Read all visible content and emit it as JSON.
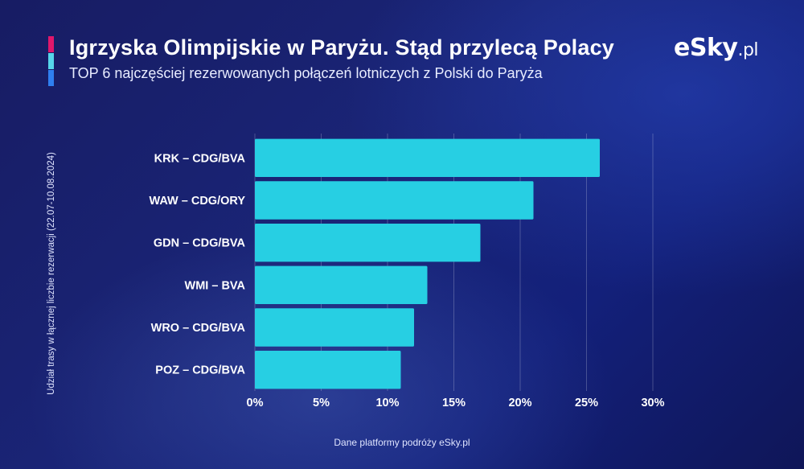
{
  "header": {
    "title": "Igrzyska Olimpijskie w Paryżu. Stąd przylecą Polacy",
    "subtitle": "TOP 6 najczęściej rezerwowanych połączeń lotniczych z Polski do Paryża",
    "accent_colors": [
      "#e0176b",
      "#56d6ea",
      "#2f7ff0"
    ]
  },
  "logo": {
    "main": "eSky",
    "suffix": ".pl"
  },
  "footer": {
    "source": "Dane platformy podróży eSky.pl"
  },
  "chart_data": {
    "type": "bar",
    "orientation": "horizontal",
    "categories": [
      "KRK – CDG/BVA",
      "WAW – CDG/ORY",
      "GDN – CDG/BVA",
      "WMI – BVA",
      "WRO – CDG/BVA",
      "POZ – CDG/BVA"
    ],
    "values": [
      26,
      21,
      17,
      13,
      12,
      11
    ],
    "xlim": [
      0,
      30
    ],
    "xticks": [
      0,
      5,
      10,
      15,
      20,
      25,
      30
    ],
    "xtick_labels": [
      "0%",
      "5%",
      "10%",
      "15%",
      "20%",
      "25%",
      "30%"
    ],
    "ylabel": "Udział trasy w łącznej liczbie rezerwacji (22.07-10.08.2024)",
    "xlabel": "",
    "grid": "vertical",
    "bar_color": "#27cfe3"
  }
}
